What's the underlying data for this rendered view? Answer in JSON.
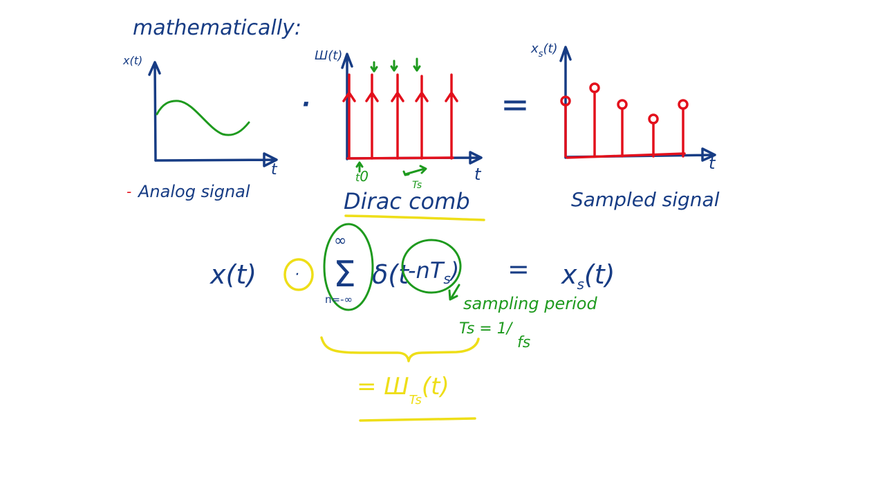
{
  "colors": {
    "ink_blue": "#173c84",
    "ink_red": "#e3101c",
    "ink_green": "#1e9a1e",
    "ink_yellow": "#eede18",
    "background": "#ffffff"
  },
  "heading": "mathematically:",
  "analog_plot": {
    "y_label": "x(t)",
    "x_label": "t",
    "caption_bullet": "-",
    "caption": "Analog signal"
  },
  "multiply_symbol": "·",
  "comb_plot": {
    "y_label": "Ш(t)",
    "x_label": "t",
    "t0_label": "t",
    "t0_sub": "0",
    "period_label": "Ts",
    "caption": "Dirac comb"
  },
  "equals_symbol": "=",
  "sampled_plot": {
    "y_label": "x",
    "y_label_sub": "s",
    "y_label_rest": "(t)",
    "x_label": "t",
    "caption": "Sampled signal"
  },
  "equation": {
    "lhs": "x(t)",
    "operator": "·",
    "sum_symbol": "Σ",
    "sum_upper": "∞",
    "sum_lower": "n=-∞",
    "delta_open": "δ(t",
    "shift": "-nT",
    "shift_sub": "s",
    "close_paren": ")",
    "equals": "=",
    "rhs": "x",
    "rhs_sub": "s",
    "rhs_rest": "(t)"
  },
  "annotation": {
    "label": "sampling period",
    "formula": "Ts = 1/",
    "formula_den": "fs"
  },
  "comb_result": {
    "prefix": "= Ш",
    "sub": "Ts",
    "suffix": "(t)"
  }
}
